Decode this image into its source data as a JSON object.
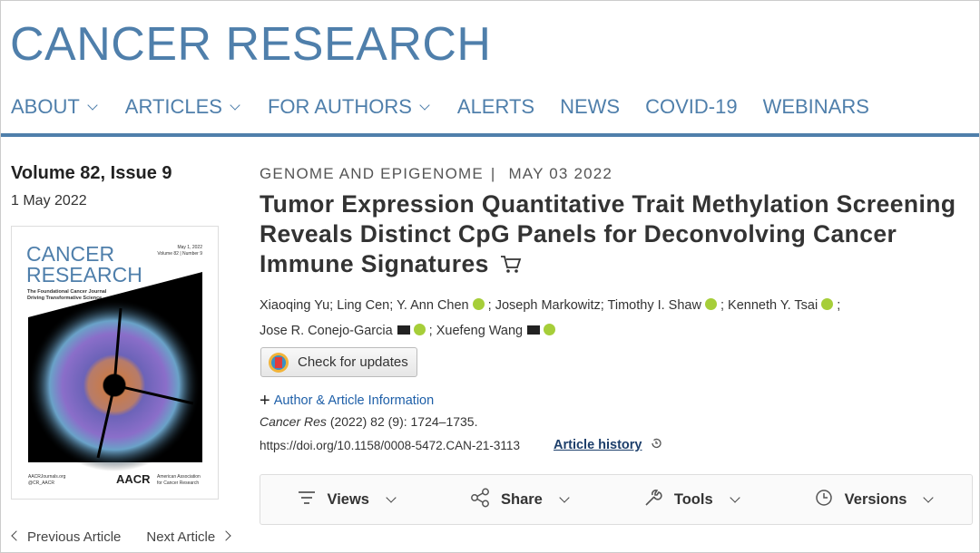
{
  "header": {
    "title": "CANCER RESEARCH",
    "nav": [
      "ABOUT",
      "ARTICLES",
      "FOR AUTHORS",
      "ALERTS",
      "NEWS",
      "COVID-19",
      "WEBINARS"
    ],
    "nav_dropdown": [
      true,
      true,
      true,
      false,
      false,
      false,
      false
    ]
  },
  "issue": {
    "volume": "Volume 82, Issue 9",
    "date": "1 May 2022",
    "cover": {
      "title": [
        "CANCER",
        "RESEARCH"
      ],
      "tagline": [
        "The Foundational Cancer Journal",
        "Driving Transformative Science"
      ],
      "issue_date": "May 1, 2022",
      "issue_info": "Volume 82 | Number 9",
      "footer": [
        "AACRJournals.org",
        "@CR_AACR"
      ],
      "logo": "AACR",
      "logo_text": [
        "American Association",
        "for Cancer Research"
      ]
    }
  },
  "article": {
    "section": "GENOME AND EPIGENOME",
    "separator": "|",
    "date": "MAY 03 2022",
    "title": "Tumor Expression Quantitative Trait Methylation Screening Reveals Distinct CpG Panels for Deconvolving Cancer Immune Signatures",
    "author_separator": ";",
    "authors": [
      {
        "name": "Xiaoqing Yu",
        "email": false,
        "orcid": false
      },
      {
        "name": "Ling Cen",
        "email": false,
        "orcid": false
      },
      {
        "name": "Y. Ann Chen",
        "email": false,
        "orcid": true
      },
      {
        "name": "Joseph Markowitz",
        "email": false,
        "orcid": false
      },
      {
        "name": "Timothy I. Shaw",
        "email": false,
        "orcid": true
      },
      {
        "name": "Kenneth Y. Tsai",
        "email": false,
        "orcid": true
      },
      {
        "name": "Jose R. Conejo-Garcia",
        "email": true,
        "orcid": true
      },
      {
        "name": "Xuefeng Wang",
        "email": true,
        "orcid": true
      }
    ],
    "check_updates": "Check for updates",
    "author_info": "Author & Article Information",
    "citation_journal": "Cancer Res",
    "citation_rest": "(2022) 82 (9): 1724–1735.",
    "doi": "https://doi.org/10.1158/0008-5472.CAN-21-3113",
    "history": "Article history"
  },
  "toolbar": [
    "Views",
    "Share",
    "Tools",
    "Versions"
  ],
  "pager": {
    "previous": "Previous Article",
    "next": "Next Article"
  }
}
